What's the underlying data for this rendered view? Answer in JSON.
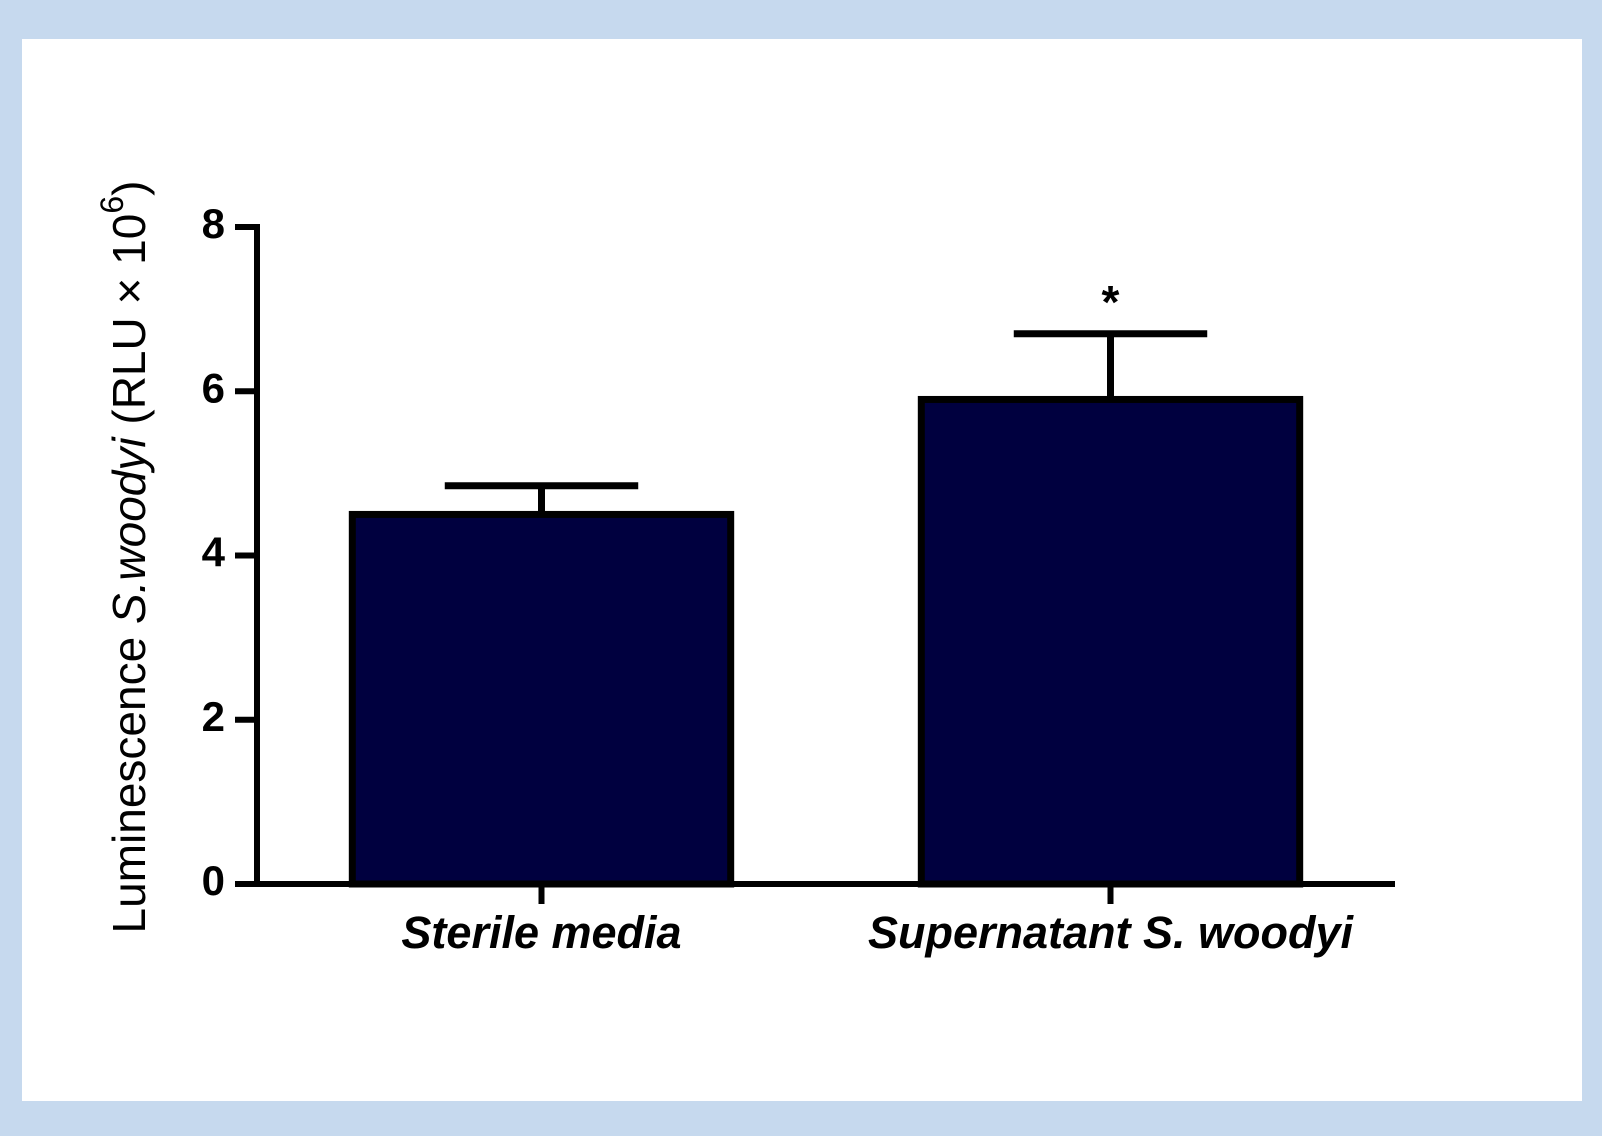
{
  "chart_data": {
    "type": "bar",
    "y_label": {
      "parts": [
        "Luminescence ",
        "S.woodyi",
        " (RLU × 10",
        "6",
        ")"
      ]
    },
    "categories": [
      "Sterile media",
      "Supernatant S. woodyi"
    ],
    "values": [
      4.5,
      5.9
    ],
    "errors": [
      0.35,
      0.8
    ],
    "color": "#00003f",
    "ylim": [
      0,
      8
    ],
    "yticks": [
      0,
      2,
      4,
      6,
      8
    ],
    "annotations": [
      {
        "text": "*",
        "x": "Supernatant S. woodyi"
      }
    ]
  }
}
